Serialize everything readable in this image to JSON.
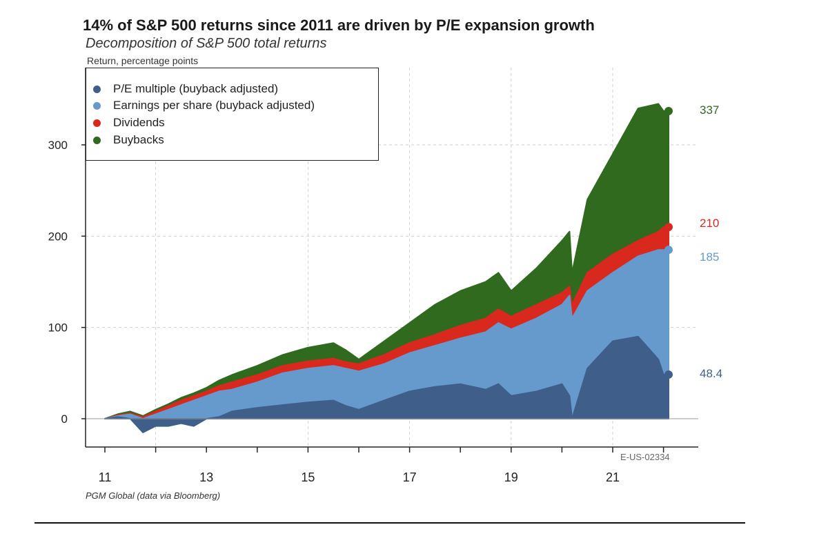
{
  "title": "14% of S&P 500 returns since 2011 are driven by P/E expansion growth",
  "subtitle": "Decomposition of S&P 500 total returns",
  "source": "PGM Global (data via Bloomberg)",
  "code": "E-US-02334",
  "colors": {
    "pe": "#3f5f8a",
    "eps": "#6699cc",
    "dividends": "#d9281e",
    "buybacks": "#2f6a1f"
  },
  "chart_data": {
    "type": "area",
    "title": "14% of S&P 500 returns since 2011 are driven by P/E expansion growth",
    "subtitle": "Decomposition of S&P 500 total returns",
    "ylabel": "Return, percentage points",
    "xlabel": "",
    "x": [
      2011.0,
      2011.25,
      2011.5,
      2011.75,
      2012.0,
      2012.25,
      2012.5,
      2012.75,
      2013.0,
      2013.25,
      2013.5,
      2014.0,
      2014.5,
      2015.0,
      2015.5,
      2015.75,
      2016.0,
      2016.5,
      2017.0,
      2017.5,
      2018.0,
      2018.5,
      2018.75,
      2019.0,
      2019.5,
      2020.0,
      2020.15,
      2020.2,
      2020.5,
      2021.0,
      2021.5,
      2021.9,
      2022.0,
      2022.1
    ],
    "xticks": [
      2011,
      2013,
      2015,
      2017,
      2019,
      2021
    ],
    "xtick_labels": [
      "11",
      "13",
      "15",
      "17",
      "19",
      "21"
    ],
    "yticks": [
      0,
      100,
      200,
      300
    ],
    "ytick_labels": [
      "0",
      "100",
      "200",
      "300"
    ],
    "ylim": [
      -30,
      380
    ],
    "xlim": [
      2010.7,
      2022.6
    ],
    "grid": true,
    "legend_position": "top-left",
    "series": [
      {
        "name": "P/E multiple (buyback adjusted)",
        "key": "pe",
        "values": [
          0,
          2,
          0,
          -15,
          -8,
          -8,
          -5,
          -8,
          0,
          2,
          8,
          12,
          15,
          18,
          20,
          14,
          10,
          20,
          30,
          35,
          38,
          32,
          38,
          25,
          30,
          38,
          25,
          0,
          55,
          85,
          90,
          65,
          48.4,
          48.4
        ]
      },
      {
        "name": "Earnings per share (buyback adjusted)",
        "key": "eps",
        "values": [
          0,
          3,
          5,
          0,
          5,
          10,
          15,
          20,
          25,
          30,
          32,
          40,
          50,
          55,
          58,
          55,
          52,
          60,
          72,
          80,
          88,
          95,
          105,
          98,
          110,
          125,
          135,
          110,
          140,
          160,
          178,
          185,
          185,
          185
        ]
      },
      {
        "name": "Dividends",
        "key": "dividends",
        "values": [
          0,
          4,
          6,
          2,
          8,
          14,
          20,
          25,
          30,
          36,
          40,
          48,
          58,
          63,
          66,
          62,
          60,
          70,
          83,
          92,
          102,
          110,
          120,
          112,
          125,
          138,
          145,
          125,
          160,
          180,
          195,
          205,
          210,
          210
        ]
      },
      {
        "name": "Buybacks",
        "key": "buybacks",
        "values": [
          0,
          5,
          8,
          3,
          10,
          16,
          23,
          28,
          34,
          42,
          48,
          58,
          70,
          78,
          83,
          75,
          65,
          85,
          105,
          125,
          140,
          150,
          160,
          140,
          165,
          195,
          205,
          160,
          240,
          290,
          340,
          345,
          337,
          337
        ]
      }
    ],
    "end_labels": [
      {
        "key": "buybacks",
        "text": "337",
        "value": 337
      },
      {
        "key": "dividends",
        "text": "210",
        "value": 210
      },
      {
        "key": "eps",
        "text": "185",
        "value": 185
      },
      {
        "key": "pe",
        "text": "48.4",
        "value": 48.4
      }
    ]
  }
}
